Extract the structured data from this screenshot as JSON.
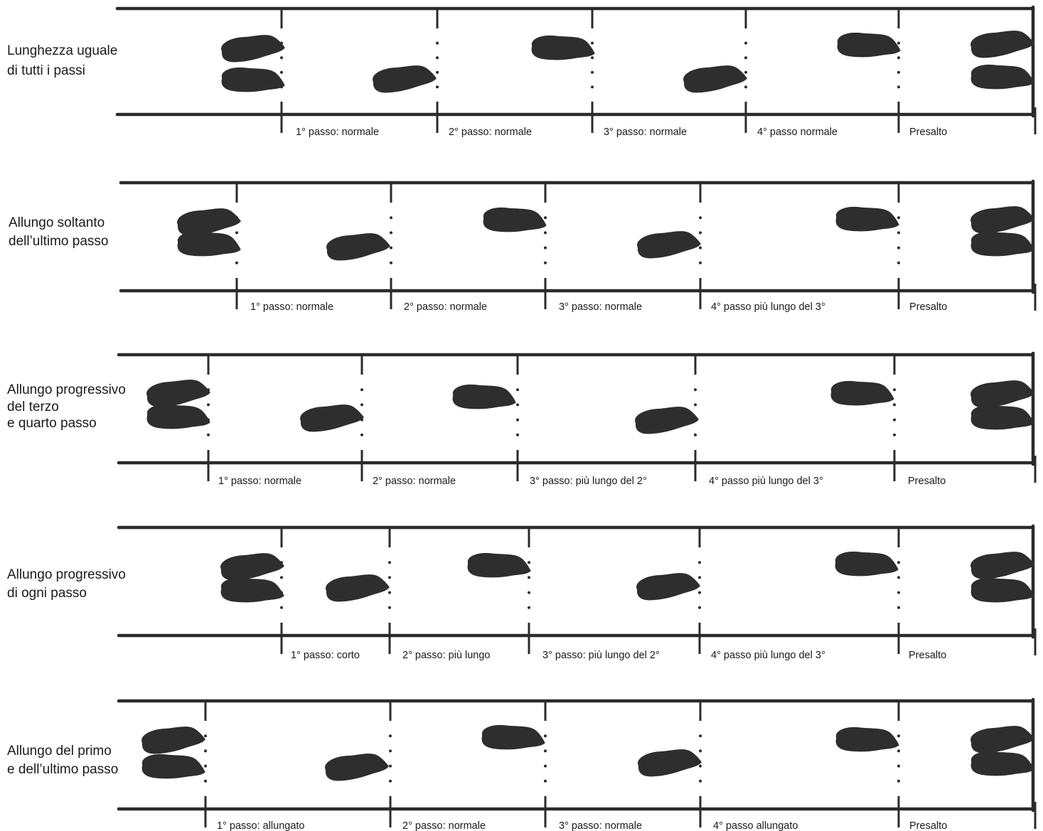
{
  "rows": [
    {
      "label_lines": [
        "Lunghezza uguale",
        "di tutti i passi"
      ],
      "steps": [
        "1° passo: normale",
        "2° passo: normale",
        "3° passo: normale",
        "4° passo normale",
        "Presalto"
      ]
    },
    {
      "label_lines": [
        "Allungo soltanto",
        "dell’ultimo passo"
      ],
      "steps": [
        "1° passo: normale",
        "2° passo: normale",
        "3° passo: normale",
        "4° passo più lungo del 3°",
        "Presalto"
      ]
    },
    {
      "label_lines": [
        "Allungo progressivo",
        "del terzo",
        "e quarto passo"
      ],
      "steps": [
        "1° passo: normale",
        "2° passo: normale",
        "3° passo: più lungo del 2°",
        "4° passo più lungo del 3°",
        "Presalto"
      ]
    },
    {
      "label_lines": [
        "Allungo progressivo",
        "di ogni passo"
      ],
      "steps": [
        "1° passo: corto",
        "2° passo: più lungo",
        "3° passo: più lungo del 2°",
        "4° passo più lungo del 3°",
        "Presalto"
      ]
    },
    {
      "label_lines": [
        "Allungo del primo",
        "e dell’ultimo passo"
      ],
      "steps": [
        "1° passo: allungato",
        "2° passo: normale",
        "3° passo: normale",
        "4° passo allungato",
        "Presalto"
      ]
    }
  ],
  "colors": {
    "ink": "#2b2b2b",
    "footprint": "#2e2e2e",
    "background": "#ffffff"
  }
}
